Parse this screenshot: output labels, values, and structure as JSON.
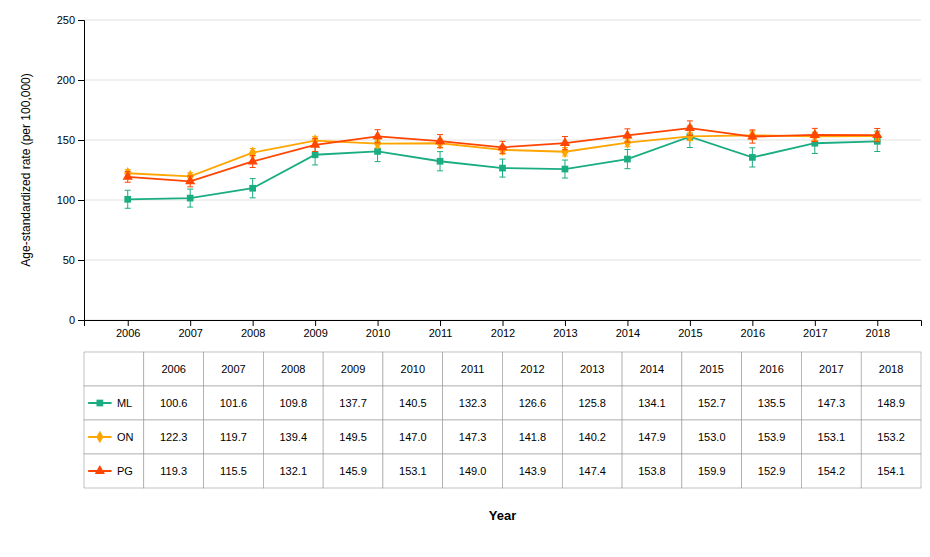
{
  "chart_data": {
    "type": "line",
    "x": [
      2006,
      2007,
      2008,
      2009,
      2010,
      2011,
      2012,
      2013,
      2014,
      2015,
      2016,
      2017,
      2018
    ],
    "xlim": [
      2005.3,
      2018.7
    ],
    "xticks": [
      2006,
      2007,
      2008,
      2009,
      2010,
      2011,
      2012,
      2013,
      2014,
      2015,
      2016,
      2017,
      2018
    ],
    "ylim": [
      0,
      250
    ],
    "yticks": [
      0,
      50,
      100,
      150,
      200,
      250
    ],
    "x_label": "Year",
    "y_label": "Age-standardized rate (per 100,000)",
    "grid": true,
    "series": [
      {
        "name": "ML",
        "color": "#1AAD82",
        "marker": "square",
        "values": [
          100.6,
          101.6,
          109.8,
          137.7,
          140.5,
          132.3,
          126.6,
          125.8,
          134.1,
          152.7,
          135.5,
          147.3,
          148.9
        ],
        "value_labels": [
          "100.6",
          "101.6",
          "109.8",
          "137.7",
          "140.5",
          "132.3",
          "126.6",
          "125.8",
          "134.1",
          "152.7",
          "135.5",
          "147.3",
          "148.9"
        ],
        "errors": [
          7.5,
          7.5,
          8.0,
          8.5,
          8.5,
          8.0,
          7.5,
          7.5,
          8.0,
          9.0,
          8.0,
          8.5,
          8.5
        ]
      },
      {
        "name": "ON",
        "color": "#FFA500",
        "marker": "diamond",
        "values": [
          122.3,
          119.7,
          139.4,
          149.5,
          147.0,
          147.3,
          141.8,
          140.2,
          147.9,
          153.0,
          153.9,
          153.1,
          153.2
        ],
        "value_labels": [
          "122.3",
          "119.7",
          "139.4",
          "149.5",
          "147.0",
          "147.3",
          "141.8",
          "140.2",
          "147.9",
          "153.0",
          "153.9",
          "153.1",
          "153.2"
        ],
        "errors": [
          3.0,
          3.0,
          3.5,
          3.5,
          3.5,
          3.5,
          3.5,
          3.5,
          3.5,
          3.5,
          3.5,
          3.5,
          3.5
        ]
      },
      {
        "name": "PG",
        "color": "#FF4500",
        "marker": "triangle",
        "values": [
          119.3,
          115.5,
          132.1,
          145.9,
          153.1,
          149.0,
          143.9,
          147.4,
          153.8,
          159.9,
          152.9,
          154.2,
          154.1
        ],
        "value_labels": [
          "119.3",
          "115.5",
          "132.1",
          "145.9",
          "153.1",
          "149.0",
          "143.9",
          "147.4",
          "153.8",
          "159.9",
          "152.9",
          "154.2",
          "154.1"
        ],
        "errors": [
          4.5,
          4.5,
          5.0,
          5.5,
          5.5,
          5.5,
          5.0,
          5.5,
          5.5,
          6.0,
          5.5,
          5.5,
          5.5
        ]
      }
    ]
  }
}
